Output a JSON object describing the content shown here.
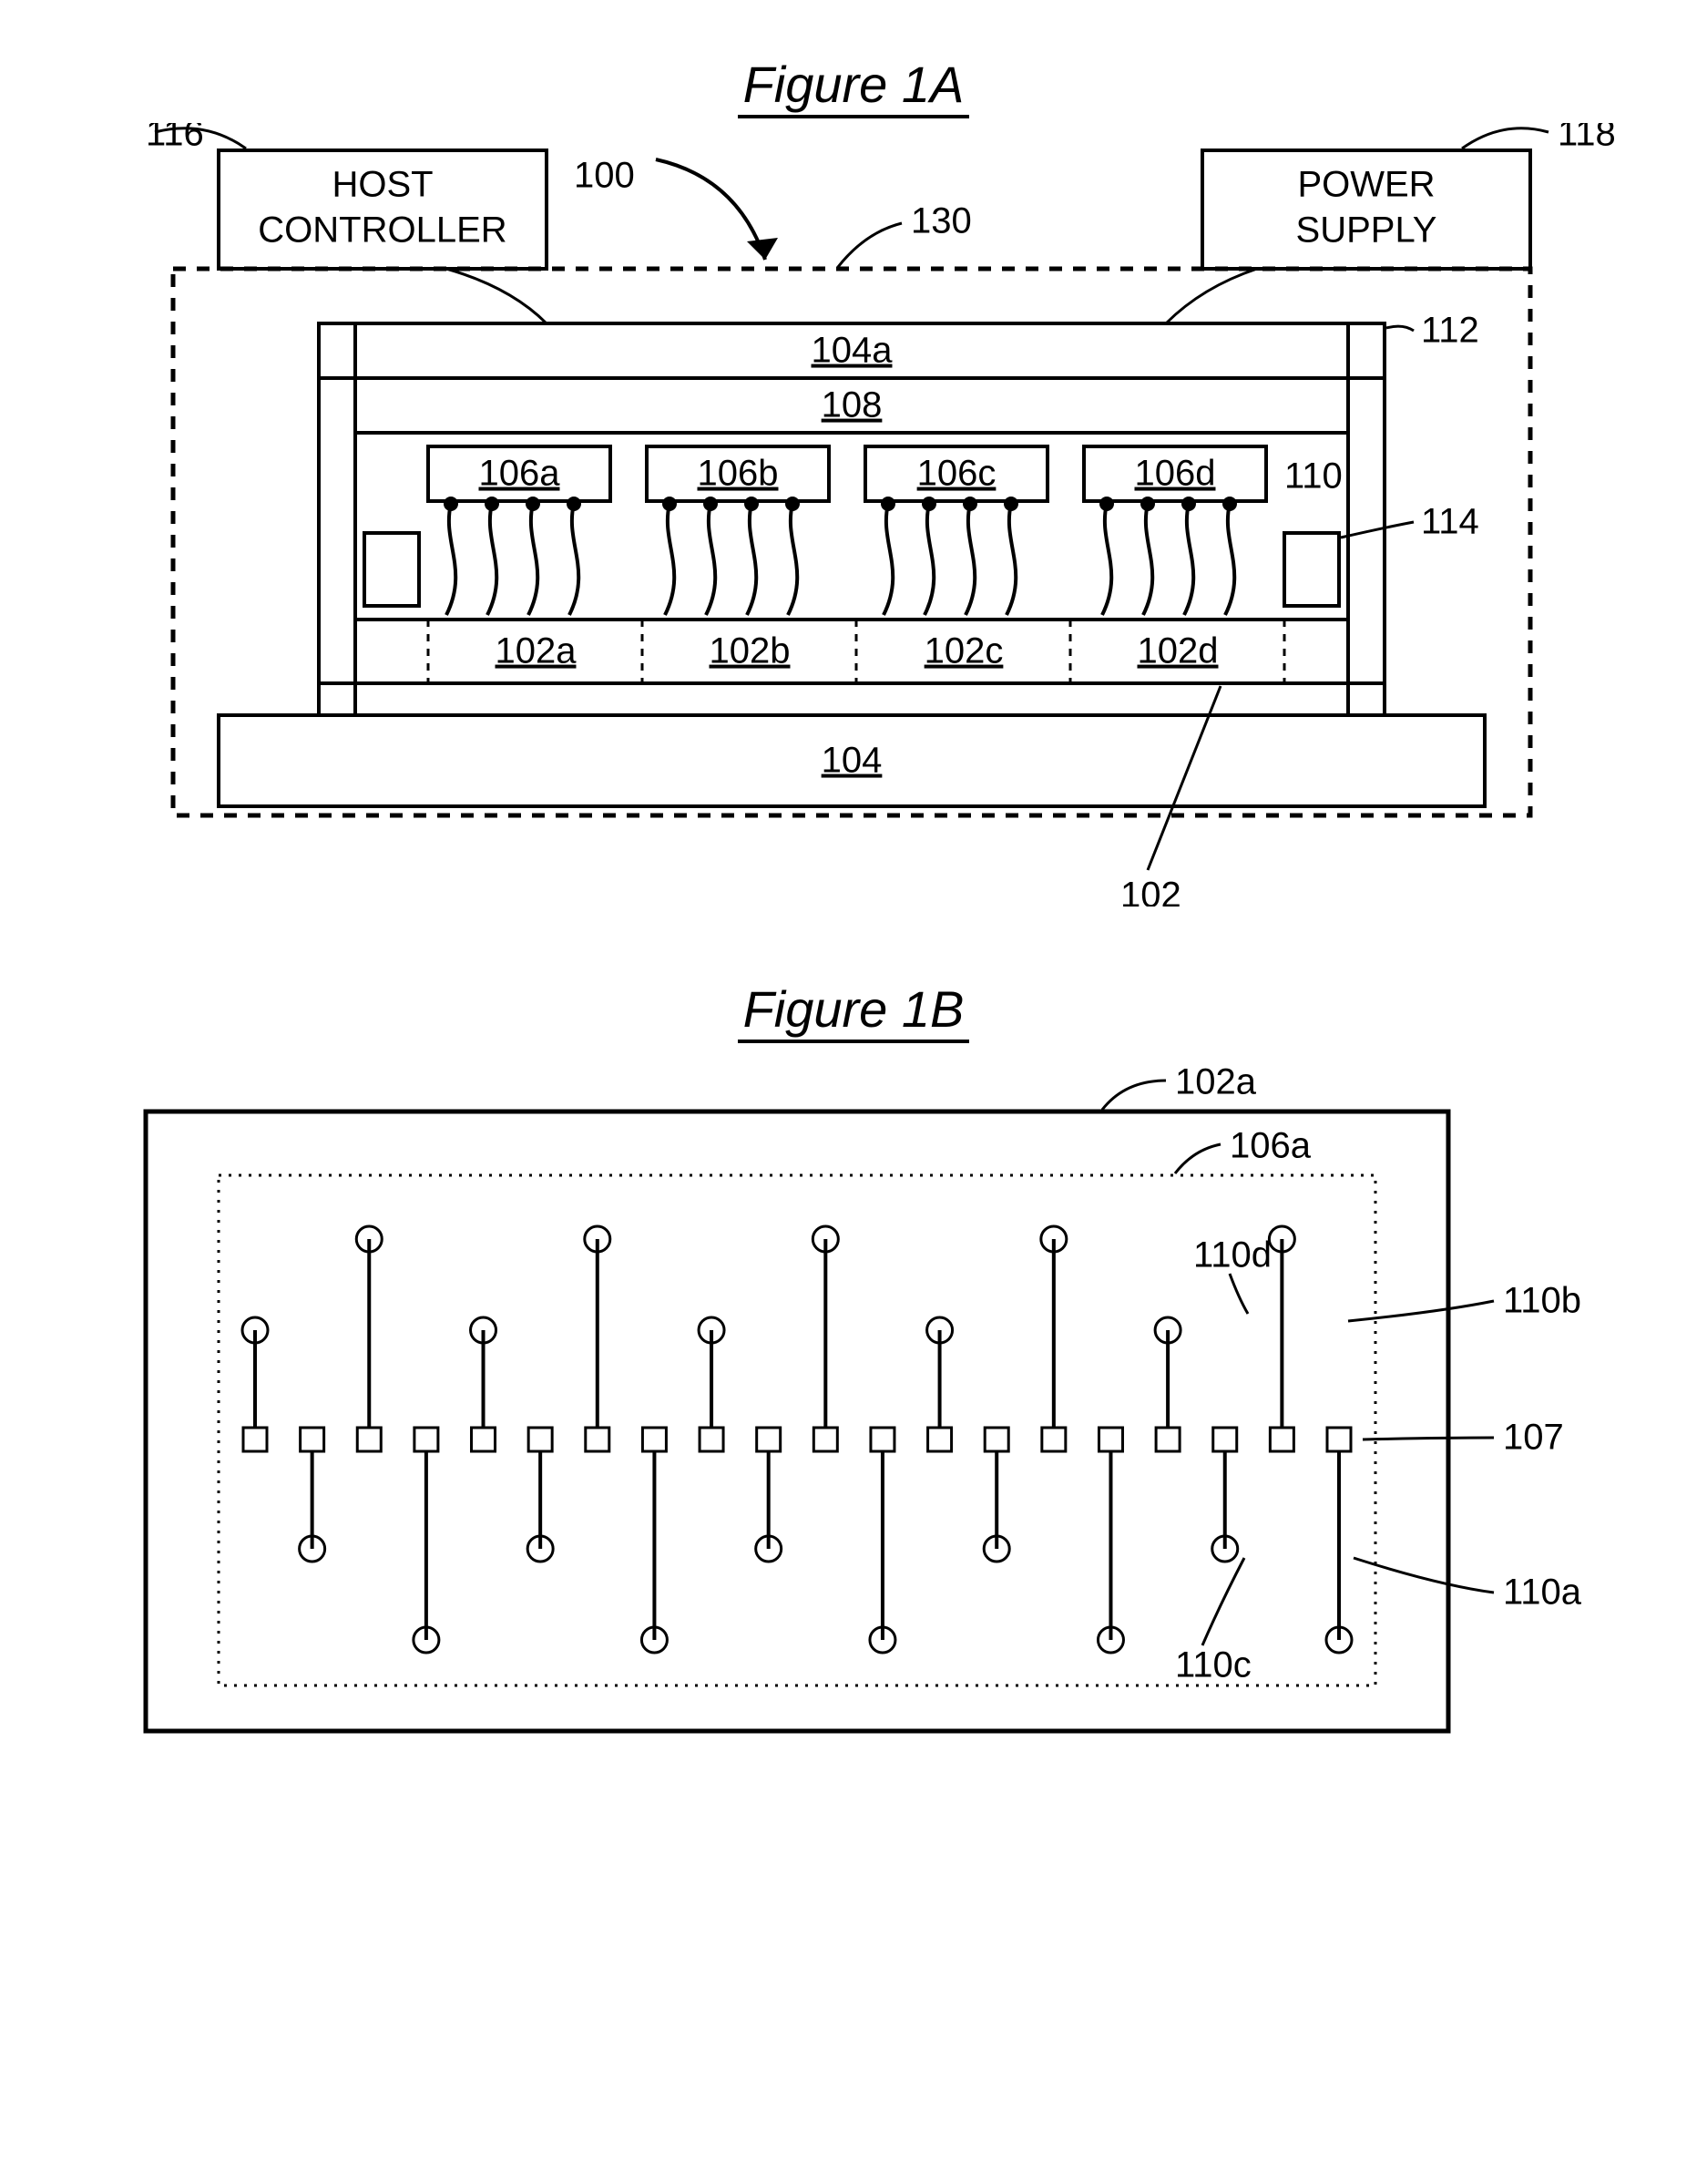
{
  "figA": {
    "title": "Figure 1A",
    "stroke_width": 4,
    "dash": "12 10",
    "host_controller": {
      "label": "HOST\nCONTROLLER",
      "callout": "116"
    },
    "power_supply": {
      "label": "POWER\nSUPPLY",
      "callout": "118"
    },
    "arrow_100": "100",
    "dashed_130": "130",
    "bar_104a": "104a",
    "bar_108": "108",
    "small_boxes": [
      "106a",
      "106b",
      "106c",
      "106d"
    ],
    "row_102": [
      "102a",
      "102b",
      "102c",
      "102d"
    ],
    "base_104": "104",
    "side_left_callout": "112",
    "side_right_callout": "114",
    "wires_callout": "110",
    "bottom_row_callout": "102",
    "colors": {
      "line": "#000000",
      "bg": "#ffffff"
    }
  },
  "figB": {
    "title": "Figure 1B",
    "stroke_width": 4,
    "dot": "4 6",
    "outer_callout": "102a",
    "inner_callout": "106a",
    "pad_callout": "107",
    "up_right_callout": "110b",
    "down_right_callout": "110a",
    "inner_up_callout": "110d",
    "inner_down_callout": "110c",
    "pairs": 10,
    "up_heights": [
      120,
      220,
      120,
      220,
      120,
      220,
      120,
      220,
      120,
      220
    ],
    "down_heights": [
      120,
      220,
      120,
      220,
      120,
      220,
      120,
      220,
      120,
      220
    ],
    "circle_r": 14,
    "pad_w": 26,
    "colors": {
      "line": "#000000",
      "bg": "#ffffff"
    }
  }
}
